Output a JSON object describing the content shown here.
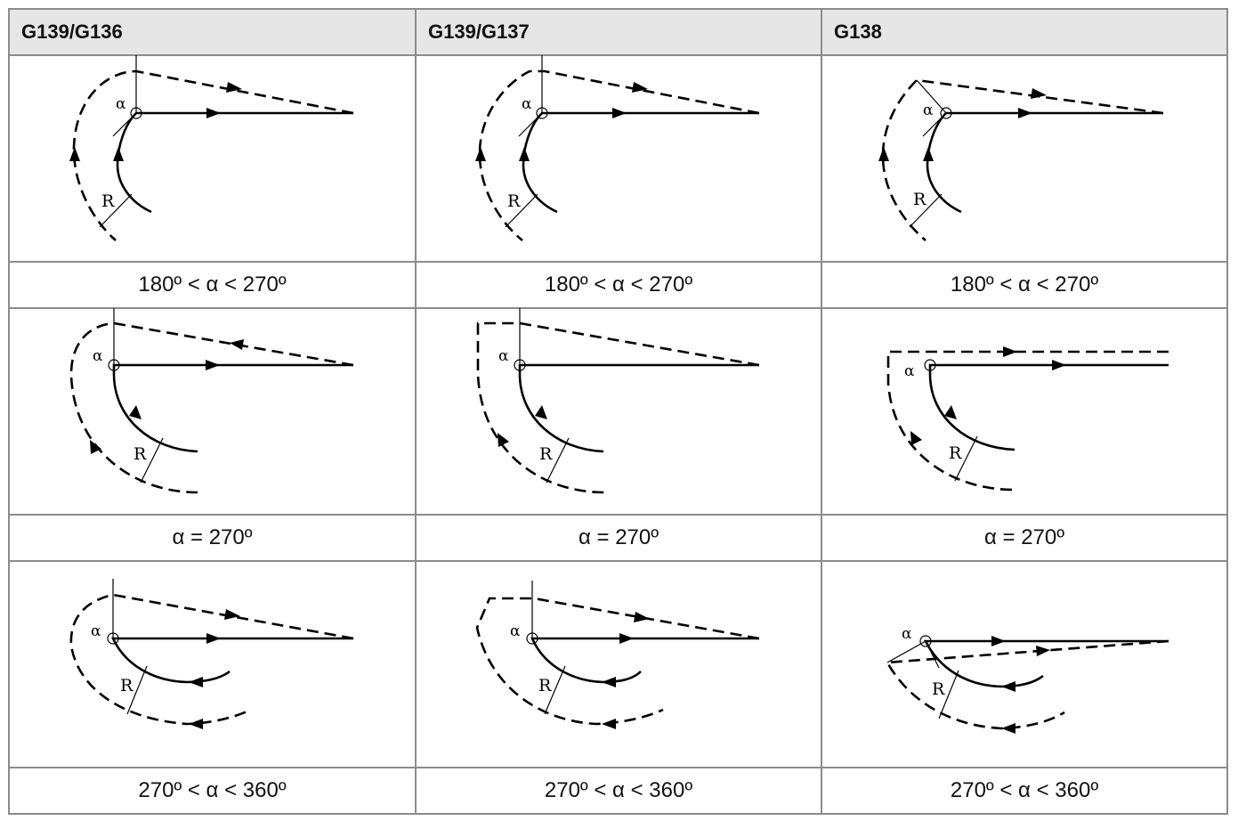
{
  "table": {
    "columns": [
      "G139/G136",
      "G139/G137",
      "G138"
    ],
    "rows": [
      {
        "caption": "180º < α < 270º"
      },
      {
        "caption": "α = 270º"
      },
      {
        "caption": "270º < α < 360º"
      }
    ]
  },
  "diagram": {
    "angle_label": "α",
    "radius_label": "R"
  }
}
